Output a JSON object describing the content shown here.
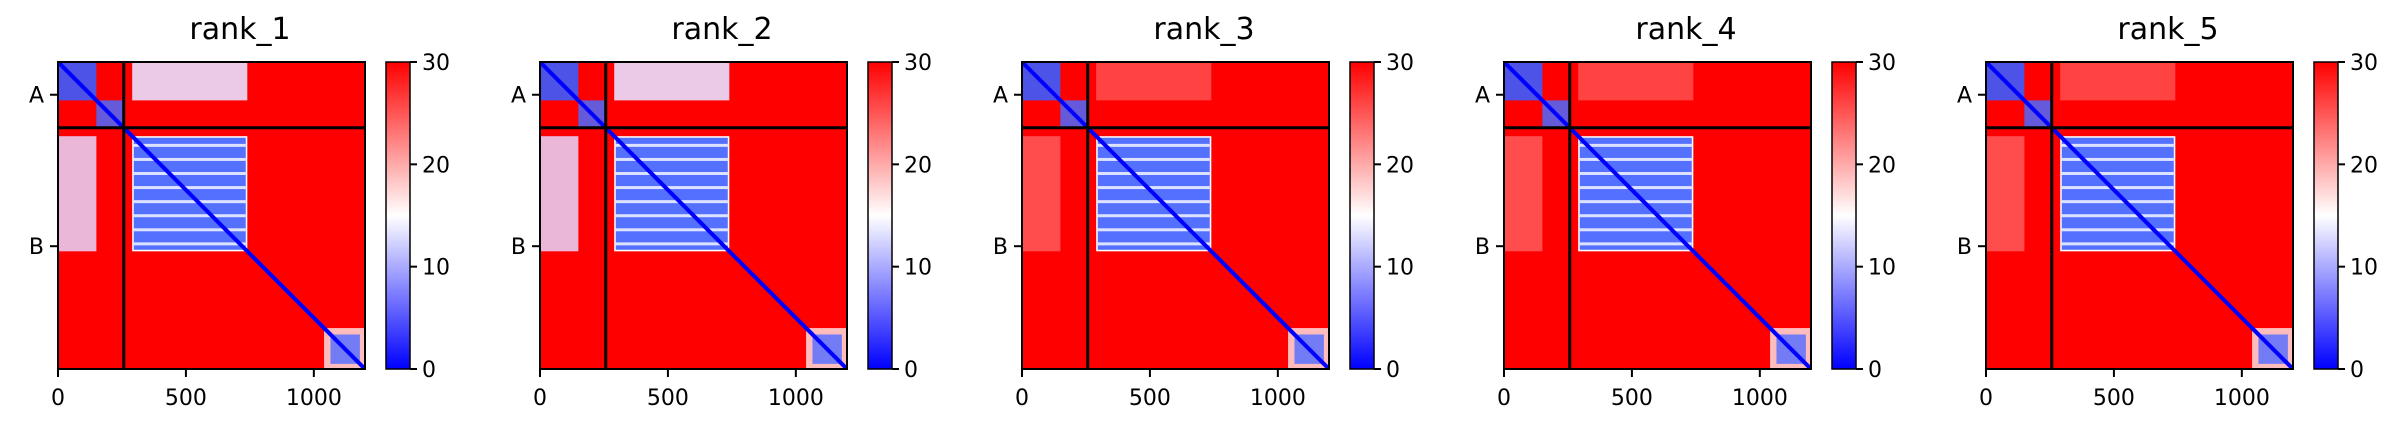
{
  "chart_data": {
    "type": "heatmap",
    "colormap": [
      "#0000ff",
      "#ffffff",
      "#ff0000"
    ],
    "colorbar": {
      "min": 0,
      "max": 30,
      "ticks": [
        "0",
        "10",
        "20",
        "30"
      ]
    },
    "xlim": [
      0,
      1200
    ],
    "ylim": [
      1200,
      0
    ],
    "xticks": [
      "0",
      "500",
      "1000"
    ],
    "chains": [
      {
        "label": "A",
        "start": 0,
        "end": 257
      },
      {
        "label": "B",
        "start": 257,
        "end": 1200
      }
    ],
    "panels": [
      {
        "title": "rank_1",
        "ab_intra_low": true,
        "b_domain": [
          290,
          740
        ]
      },
      {
        "title": "rank_2",
        "ab_intra_low": true,
        "b_domain": [
          290,
          740
        ]
      },
      {
        "title": "rank_3",
        "ab_intra_low": false,
        "b_domain": [
          290,
          740
        ]
      },
      {
        "title": "rank_4",
        "ab_intra_low": false,
        "b_domain": [
          290,
          740
        ]
      },
      {
        "title": "rank_5",
        "ab_intra_low": false,
        "b_domain": [
          290,
          740
        ]
      }
    ]
  }
}
